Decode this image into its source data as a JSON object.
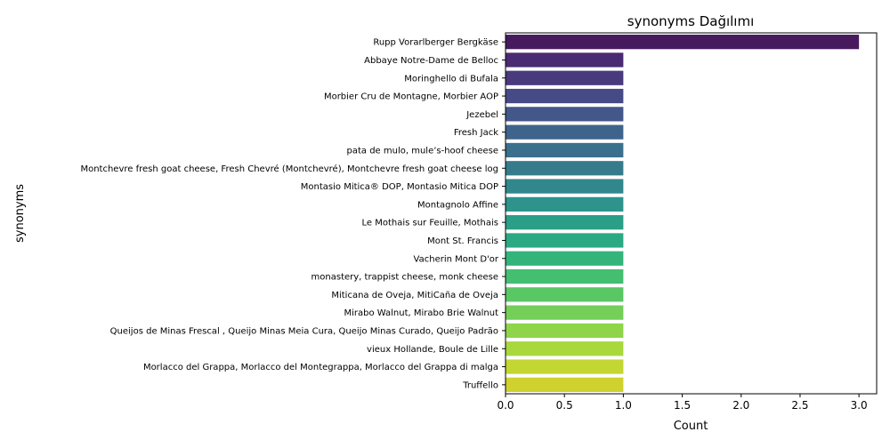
{
  "chart_data": {
    "type": "bar",
    "orientation": "horizontal",
    "title": "synonyms Dağılımı",
    "xlabel": "Count",
    "ylabel": "synonyms",
    "xlim": [
      0,
      3.15
    ],
    "xticks": [
      "0.0",
      "0.5",
      "1.0",
      "1.5",
      "2.0",
      "2.5",
      "3.0"
    ],
    "xtick_values": [
      0,
      0.5,
      1.0,
      1.5,
      2.0,
      2.5,
      3.0
    ],
    "grid": false,
    "legend": "none",
    "palette": "viridis",
    "categories": [
      "Rupp Vorarlberger Bergkäse",
      "Abbaye Notre-Dame de Belloc",
      "Moringhello di Bufala",
      "Morbier Cru de Montagne, Morbier AOP",
      "Jezebel",
      "Fresh Jack",
      "pata de mulo, mule’s-hoof cheese",
      "Montchevre fresh goat cheese, Fresh Chevré (Montchevré), Montchevre fresh goat cheese log",
      "Montasio Mitica® DOP, Montasio Mitica DOP",
      "Montagnolo Affine",
      "Le Mothais sur Feuille, Mothais",
      "Mont St. Francis",
      "Vacherin Mont D'or",
      "monastery, trappist cheese, monk cheese",
      "Miticana de Oveja, MitiCaña de Oveja",
      "Mirabo Walnut, Mirabo Brie Walnut",
      "Queijos de Minas Frescal , Queijo Minas Meia Cura, Queijo Minas Curado, Queijo Padrão",
      "vieux Hollande, Boule de Lille",
      "Morlacco del Grappa, Morlacco del Montegrappa, Morlacco del Grappa di malga",
      "Truffello"
    ],
    "values": [
      3,
      1,
      1,
      1,
      1,
      1,
      1,
      1,
      1,
      1,
      1,
      1,
      1,
      1,
      1,
      1,
      1,
      1,
      1,
      1
    ],
    "colors": [
      "#471a5e",
      "#4a2a72",
      "#493a7e",
      "#464a86",
      "#43578b",
      "#3f648c",
      "#3a708c",
      "#367b8c",
      "#31878c",
      "#2d938b",
      "#2a9e87",
      "#2aa982",
      "#33b47a",
      "#44be70",
      "#5ac765",
      "#74ce58",
      "#8ed54a",
      "#a8d83c",
      "#c3d632",
      "#cfd12e"
    ]
  }
}
